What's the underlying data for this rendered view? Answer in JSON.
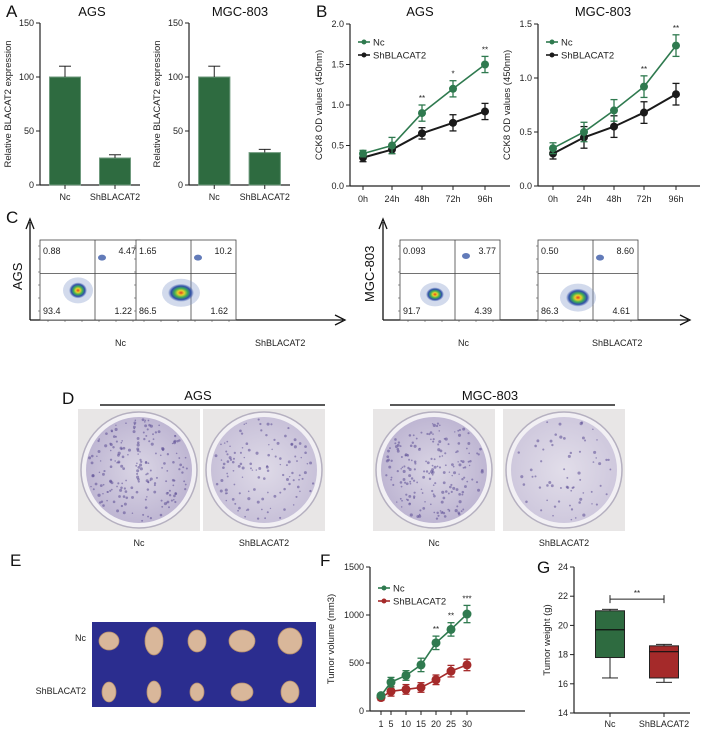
{
  "figure": {
    "panel_letters": [
      "A",
      "B",
      "C",
      "D",
      "E",
      "F",
      "G"
    ],
    "colors": {
      "green": "#2e6b40",
      "green_line": "#2f7a4f",
      "black": "#1a1a1a",
      "red": "#a52a2a",
      "plate_bg": "#e8e6e6",
      "plate_stain": "#7a6aa8",
      "tumor_bg": "#2b2d8f",
      "tumor": "#d9b79a"
    }
  },
  "chart_data": [
    {
      "id": "A-AGS",
      "type": "bar",
      "title": "AGS",
      "ylabel": "Relative BLACAT2 expression",
      "xlabel": "",
      "categories": [
        "Nc",
        "ShBLACAT2"
      ],
      "values": [
        100,
        25
      ],
      "errors": [
        10,
        3
      ],
      "ylim": [
        0,
        150
      ],
      "yticks": [
        0,
        50,
        100,
        150
      ]
    },
    {
      "id": "A-MGC803",
      "type": "bar",
      "title": "MGC-803",
      "ylabel": "Relative BLACAT2 expression",
      "xlabel": "",
      "categories": [
        "Nc",
        "ShBLACAT2"
      ],
      "values": [
        100,
        30
      ],
      "errors": [
        10,
        3
      ],
      "ylim": [
        0,
        150
      ],
      "yticks": [
        0,
        50,
        100,
        150
      ]
    },
    {
      "id": "B-AGS",
      "type": "line",
      "title": "AGS",
      "ylabel": "CCK8 OD values (450nm)",
      "xlabel": "",
      "x": [
        "0h",
        "24h",
        "48h",
        "72h",
        "96h"
      ],
      "series": [
        {
          "name": "Nc",
          "values": [
            0.4,
            0.5,
            0.9,
            1.2,
            1.5
          ],
          "errors": [
            0.04,
            0.1,
            0.1,
            0.1,
            0.1
          ]
        },
        {
          "name": "ShBLACAT2",
          "values": [
            0.35,
            0.45,
            0.65,
            0.78,
            0.92
          ],
          "errors": [
            0.05,
            0.05,
            0.07,
            0.1,
            0.1
          ]
        }
      ],
      "significance": [
        "",
        "",
        "**",
        "*",
        "**"
      ],
      "ylim": [
        0,
        2.0
      ],
      "yticks": [
        0.0,
        0.5,
        1.0,
        1.5,
        2.0
      ],
      "ytick_labels": [
        "0.0",
        "0.5",
        "1.0",
        "1.5",
        "2.0"
      ],
      "legend": "top-left"
    },
    {
      "id": "B-MGC803",
      "type": "line",
      "title": "MGC-803",
      "ylabel": "CCK8 OD values (450nm)",
      "xlabel": "",
      "x": [
        "0h",
        "24h",
        "48h",
        "72h",
        "96h"
      ],
      "series": [
        {
          "name": "Nc",
          "values": [
            0.35,
            0.5,
            0.7,
            0.92,
            1.3
          ],
          "errors": [
            0.05,
            0.09,
            0.1,
            0.1,
            0.1
          ]
        },
        {
          "name": "ShBLACAT2",
          "values": [
            0.3,
            0.45,
            0.55,
            0.68,
            0.85
          ],
          "errors": [
            0.05,
            0.1,
            0.1,
            0.1,
            0.1
          ]
        }
      ],
      "significance": [
        "",
        "",
        "",
        "**",
        "**"
      ],
      "ylim": [
        0,
        1.5
      ],
      "yticks": [
        0.0,
        0.5,
        1.0,
        1.5
      ],
      "ytick_labels": [
        "0.0",
        "0.5",
        "1.0",
        "1.5"
      ],
      "legend": "top-left"
    },
    {
      "id": "F",
      "type": "line",
      "title": "",
      "ylabel": "Tumor volume (mm3)",
      "xlabel": "",
      "x": [
        "1",
        "5",
        "10",
        "15",
        "20",
        "25",
        "30"
      ],
      "series": [
        {
          "name": "Nc",
          "values": [
            160,
            300,
            370,
            480,
            710,
            850,
            1010
          ],
          "errors": [
            20,
            50,
            50,
            70,
            70,
            70,
            90
          ]
        },
        {
          "name": "ShBLACAT2",
          "values": [
            140,
            205,
            225,
            245,
            325,
            415,
            480
          ],
          "errors": [
            30,
            50,
            50,
            50,
            50,
            60,
            60
          ]
        }
      ],
      "significance": [
        "",
        "",
        "",
        "",
        "**",
        "**",
        "***"
      ],
      "ylim": [
        0,
        1500
      ],
      "yticks": [
        0,
        500,
        1000,
        1500
      ],
      "ytick_labels": [
        "0",
        "500",
        "1000",
        "1500"
      ],
      "legend": "top-left"
    },
    {
      "id": "G",
      "type": "box",
      "title": "",
      "ylabel": "Tumor weight (g)",
      "xlabel": "",
      "categories": [
        "Nc",
        "ShBLACAT2"
      ],
      "boxes": [
        {
          "min": 16.4,
          "q1": 17.8,
          "median": 19.7,
          "q3": 21.0,
          "max": 21.1
        },
        {
          "min": 16.1,
          "q1": 16.4,
          "median": 18.2,
          "q3": 18.6,
          "max": 18.7
        }
      ],
      "significance": "**",
      "ylim": [
        14,
        24
      ],
      "yticks": [
        14,
        16,
        18,
        20,
        22,
        24
      ]
    }
  ],
  "flow": {
    "row_labels": [
      "AGS",
      "MGC-803"
    ],
    "group_labels": [
      "Nc",
      "ShBLACAT2"
    ],
    "plots": [
      {
        "cell": "AGS",
        "group": "Nc",
        "ul": "0.88",
        "ur": "4.47",
        "ll": "93.4",
        "lr": "1.22"
      },
      {
        "cell": "AGS",
        "group": "ShBLACAT2",
        "ul": "1.65",
        "ur": "10.2",
        "ll": "86.5",
        "lr": "1.62"
      },
      {
        "cell": "MGC-803",
        "group": "Nc",
        "ul": "0.093",
        "ur": "3.77",
        "ll": "91.7",
        "lr": "4.39"
      },
      {
        "cell": "MGC-803",
        "group": "ShBLACAT2",
        "ul": "0.50",
        "ur": "8.60",
        "ll": "86.3",
        "lr": "4.61"
      }
    ]
  },
  "colony": {
    "headers": [
      "AGS",
      "MGC-803"
    ],
    "plates": [
      {
        "cell": "AGS",
        "label": "Nc",
        "density": 0.9
      },
      {
        "cell": "AGS",
        "label": "ShBLACAT2",
        "density": 0.55
      },
      {
        "cell": "MGC-803",
        "label": "Nc",
        "density": 0.9
      },
      {
        "cell": "MGC-803",
        "label": "ShBLACAT2",
        "density": 0.3
      }
    ]
  },
  "tumor_photo": {
    "row_labels": [
      "Nc",
      "ShBLACAT2"
    ],
    "count_per_row": 5
  }
}
